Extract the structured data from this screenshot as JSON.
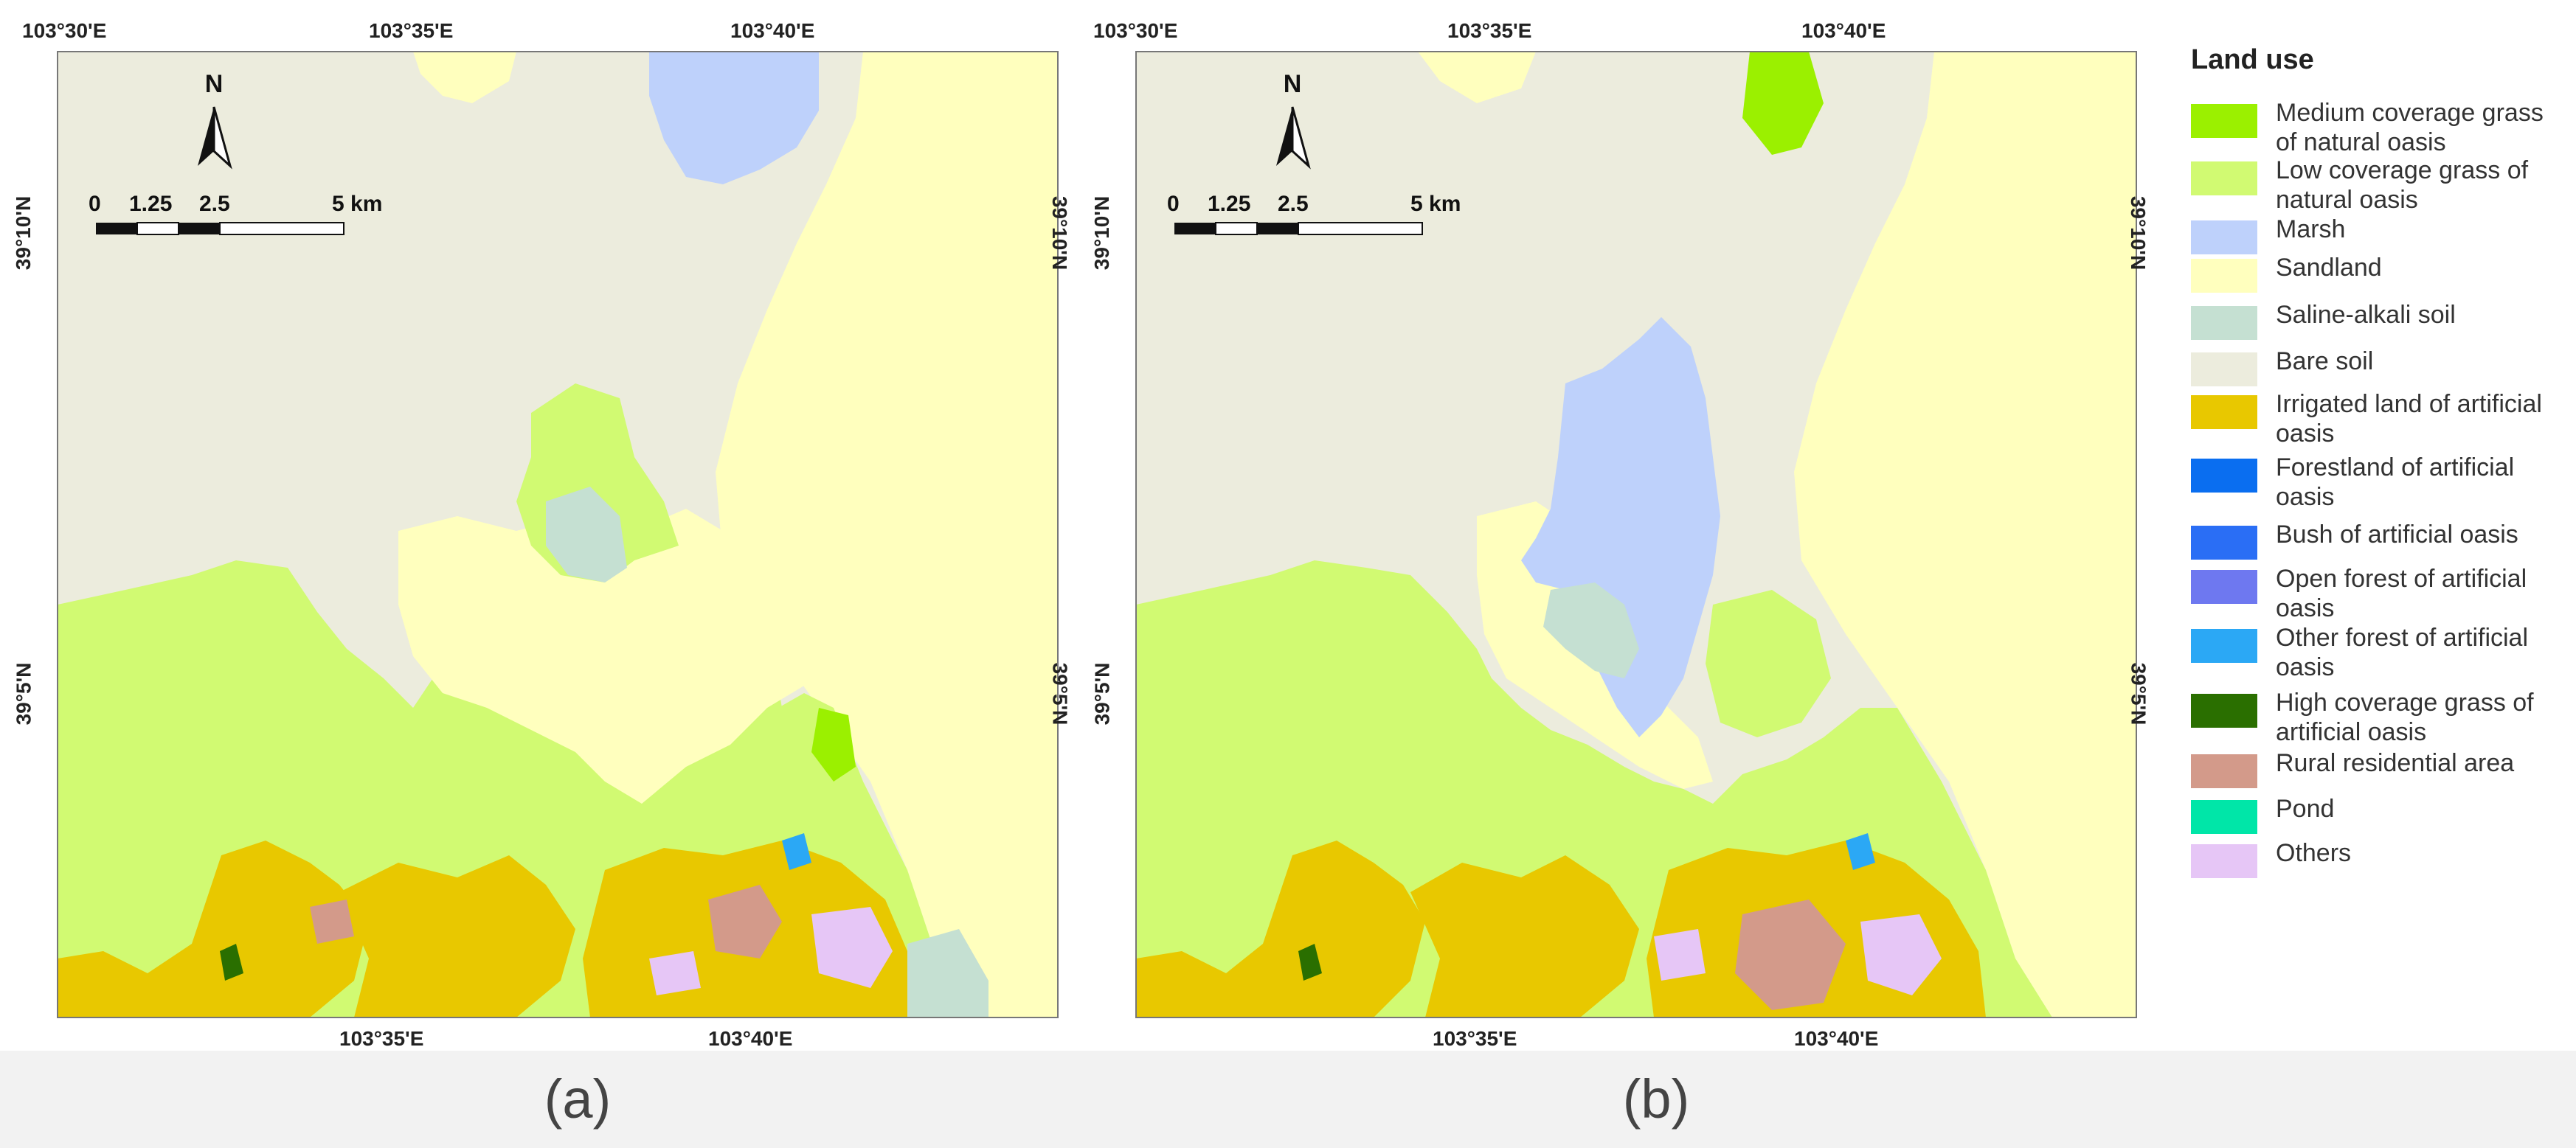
{
  "figure": {
    "panels": [
      {
        "label": "(a)",
        "top_ticks": [
          "103°30'E",
          "103°35'E",
          "103°40'E"
        ],
        "bottom_ticks": [
          "103°35'E",
          "103°40'E"
        ],
        "left_ticks": [
          "39°10'N",
          "39°5'N"
        ],
        "right_ticks": [
          "39°10'N",
          "39°5'N"
        ],
        "north_label": "N",
        "scale_labels": [
          "0",
          "1.25",
          "2.5",
          "5 km"
        ]
      },
      {
        "label": "(b)",
        "top_ticks": [
          "103°30'E",
          "103°35'E",
          "103°40'E"
        ],
        "bottom_ticks": [
          "103°35'E",
          "103°40'E"
        ],
        "left_ticks": [
          "39°10'N",
          "39°5'N"
        ],
        "right_ticks": [
          "39°10'N",
          "39°5'N"
        ],
        "north_label": "N",
        "scale_labels": [
          "0",
          "1.25",
          "2.5",
          "5 km"
        ]
      }
    ]
  },
  "legend": {
    "title": "Land use",
    "items": [
      {
        "label": "Medium coverage grass of natural oasis",
        "color": "#9bf000"
      },
      {
        "label": "Low coverage grass of natural oasis",
        "color": "#d1fa72"
      },
      {
        "label": "Marsh",
        "color": "#bed1fb"
      },
      {
        "label": "Sandland",
        "color": "#ffffbe"
      },
      {
        "label": "Saline-alkali soil",
        "color": "#c5e0d2"
      },
      {
        "label": "Bare soil",
        "color": "#ececdd"
      },
      {
        "label": "Irrigated land of artificial oasis",
        "color": "#e8c800"
      },
      {
        "label": "Forestland of artificial oasis",
        "color": "#0a6ef0"
      },
      {
        "label": "Bush of artificial oasis",
        "color": "#2a6ef5"
      },
      {
        "label": "Open forest of artificial oasis",
        "color": "#6e78f0"
      },
      {
        "label": "Other forest of artificial oasis",
        "color": "#2ba8f5"
      },
      {
        "label": "High coverage grass of artificial oasis",
        "color": "#2a6f00"
      },
      {
        "label": "Rural residential area",
        "color": "#d39a8a"
      },
      {
        "label": "Pond",
        "color": "#00e6a8"
      },
      {
        "label": "Others",
        "color": "#e6c6f6"
      }
    ]
  }
}
